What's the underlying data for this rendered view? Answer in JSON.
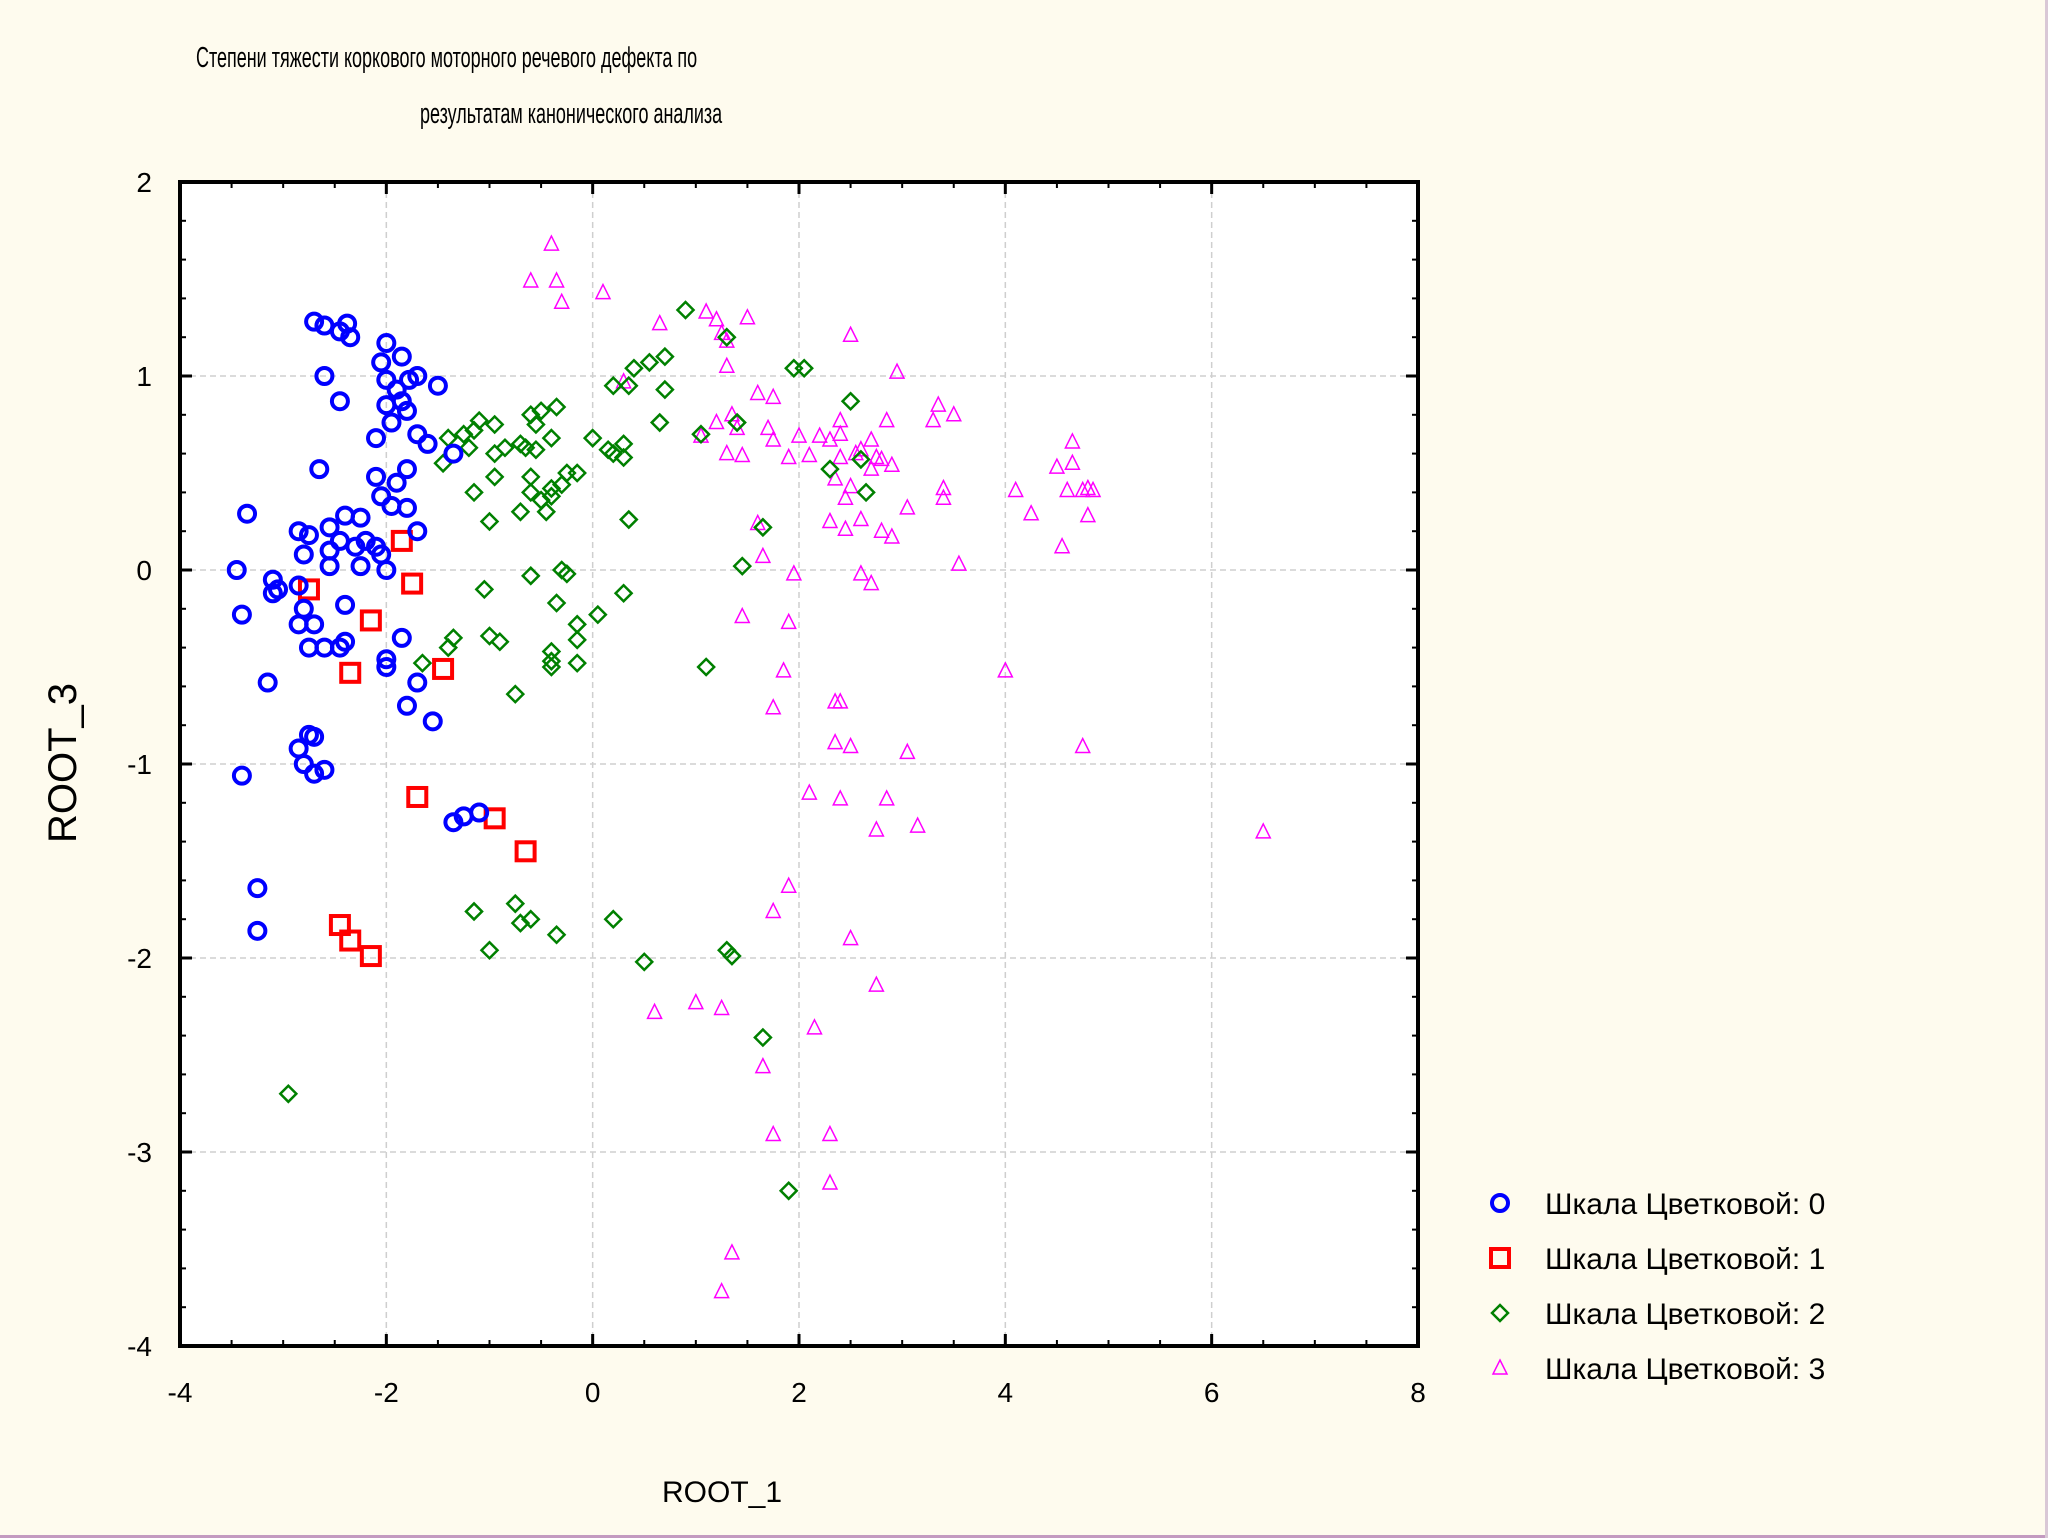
{
  "chart_data": {
    "type": "scatter",
    "title": [
      "Степени тяжести коркового моторного речевого дефекта по",
      "результатам канонического анализа"
    ],
    "xlabel": "ROOT_1",
    "ylabel": "ROOT_3",
    "xlim": [
      -4,
      8
    ],
    "ylim": [
      -4,
      2
    ],
    "xticks": [
      -4,
      -2,
      0,
      2,
      4,
      6,
      8
    ],
    "yticks": [
      2,
      1,
      0,
      -1,
      -2,
      -3,
      -4
    ],
    "grid": true,
    "legend_position": "bottom-right, outside plot",
    "series": [
      {
        "name": "Шкала Цветковой: 0",
        "marker": "circle",
        "color": "#0000ff",
        "points": [
          [
            -2.7,
            1.28
          ],
          [
            -2.6,
            1.26
          ],
          [
            -2.45,
            1.23
          ],
          [
            -2.38,
            1.27
          ],
          [
            -2.35,
            1.2
          ],
          [
            -2.6,
            1.0
          ],
          [
            -2.45,
            0.87
          ],
          [
            -2.0,
            1.17
          ],
          [
            -1.85,
            1.1
          ],
          [
            -2.05,
            1.07
          ],
          [
            -2.0,
            0.98
          ],
          [
            -1.9,
            0.93
          ],
          [
            -1.78,
            0.98
          ],
          [
            -1.7,
            1.0
          ],
          [
            -1.5,
            0.95
          ],
          [
            -2.0,
            0.85
          ],
          [
            -1.85,
            0.87
          ],
          [
            -1.8,
            0.82
          ],
          [
            -1.95,
            0.76
          ],
          [
            -1.7,
            0.7
          ],
          [
            -1.6,
            0.65
          ],
          [
            -1.35,
            0.6
          ],
          [
            -2.1,
            0.68
          ],
          [
            -2.65,
            0.52
          ],
          [
            -2.1,
            0.48
          ],
          [
            -1.8,
            0.52
          ],
          [
            -1.9,
            0.45
          ],
          [
            -2.05,
            0.38
          ],
          [
            -1.95,
            0.33
          ],
          [
            -1.8,
            0.32
          ],
          [
            -3.35,
            0.29
          ],
          [
            -2.85,
            0.2
          ],
          [
            -2.75,
            0.18
          ],
          [
            -2.55,
            0.22
          ],
          [
            -2.4,
            0.28
          ],
          [
            -2.25,
            0.27
          ],
          [
            -2.45,
            0.15
          ],
          [
            -2.3,
            0.12
          ],
          [
            -2.2,
            0.15
          ],
          [
            -2.1,
            0.12
          ],
          [
            -2.55,
            0.1
          ],
          [
            -2.8,
            0.08
          ],
          [
            -2.55,
            0.02
          ],
          [
            -2.25,
            0.02
          ],
          [
            -2.05,
            0.08
          ],
          [
            -2.0,
            0.0
          ],
          [
            -1.7,
            0.2
          ],
          [
            -3.45,
            0.0
          ],
          [
            -3.1,
            -0.05
          ],
          [
            -3.05,
            -0.1
          ],
          [
            -3.1,
            -0.12
          ],
          [
            -2.85,
            -0.08
          ],
          [
            -2.4,
            -0.18
          ],
          [
            -3.4,
            -0.23
          ],
          [
            -2.8,
            -0.2
          ],
          [
            -2.85,
            -0.28
          ],
          [
            -2.7,
            -0.28
          ],
          [
            -2.75,
            -0.4
          ],
          [
            -2.6,
            -0.4
          ],
          [
            -2.45,
            -0.4
          ],
          [
            -2.4,
            -0.37
          ],
          [
            -1.85,
            -0.35
          ],
          [
            -2.0,
            -0.46
          ],
          [
            -2.0,
            -0.5
          ],
          [
            -3.15,
            -0.58
          ],
          [
            -1.7,
            -0.58
          ],
          [
            -1.8,
            -0.7
          ],
          [
            -1.55,
            -0.78
          ],
          [
            -2.75,
            -0.85
          ],
          [
            -2.7,
            -0.86
          ],
          [
            -2.85,
            -0.92
          ],
          [
            -2.8,
            -1.0
          ],
          [
            -2.7,
            -1.05
          ],
          [
            -2.6,
            -1.03
          ],
          [
            -3.4,
            -1.06
          ],
          [
            -1.35,
            -1.3
          ],
          [
            -1.25,
            -1.27
          ],
          [
            -1.1,
            -1.25
          ],
          [
            -3.25,
            -1.64
          ],
          [
            -3.25,
            -1.86
          ]
        ]
      },
      {
        "name": "Шкала Цветковой: 1",
        "marker": "square",
        "color": "#ff0000",
        "points": [
          [
            -1.85,
            0.15
          ],
          [
            -1.75,
            -0.07
          ],
          [
            -2.75,
            -0.1
          ],
          [
            -2.15,
            -0.26
          ],
          [
            -2.35,
            -0.53
          ],
          [
            -1.45,
            -0.51
          ],
          [
            -1.7,
            -1.17
          ],
          [
            -0.95,
            -1.28
          ],
          [
            -0.65,
            -1.45
          ],
          [
            -2.45,
            -1.83
          ],
          [
            -2.35,
            -1.91
          ],
          [
            -2.15,
            -1.99
          ]
        ]
      },
      {
        "name": "Шкала Цветковой: 2",
        "marker": "diamond",
        "color": "#008000",
        "points": [
          [
            0.9,
            1.34
          ],
          [
            1.3,
            1.2
          ],
          [
            0.7,
            1.1
          ],
          [
            0.55,
            1.07
          ],
          [
            0.4,
            1.04
          ],
          [
            1.95,
            1.04
          ],
          [
            2.05,
            1.04
          ],
          [
            0.2,
            0.95
          ],
          [
            0.35,
            0.95
          ],
          [
            0.7,
            0.93
          ],
          [
            2.5,
            0.87
          ],
          [
            -0.35,
            0.84
          ],
          [
            -0.6,
            0.8
          ],
          [
            -0.5,
            0.82
          ],
          [
            -0.55,
            0.75
          ],
          [
            -0.95,
            0.75
          ],
          [
            -1.1,
            0.77
          ],
          [
            -1.15,
            0.72
          ],
          [
            -1.25,
            0.7
          ],
          [
            -1.4,
            0.68
          ],
          [
            -0.4,
            0.68
          ],
          [
            0.0,
            0.68
          ],
          [
            0.3,
            0.65
          ],
          [
            0.15,
            0.62
          ],
          [
            0.2,
            0.6
          ],
          [
            0.65,
            0.76
          ],
          [
            1.05,
            0.7
          ],
          [
            1.4,
            0.76
          ],
          [
            -1.2,
            0.63
          ],
          [
            -0.95,
            0.6
          ],
          [
            -0.85,
            0.63
          ],
          [
            -0.7,
            0.65
          ],
          [
            -0.65,
            0.63
          ],
          [
            -0.55,
            0.62
          ],
          [
            -0.4,
            0.42
          ],
          [
            -0.6,
            0.48
          ],
          [
            -0.25,
            0.5
          ],
          [
            -0.15,
            0.5
          ],
          [
            -0.3,
            0.44
          ],
          [
            0.3,
            0.58
          ],
          [
            2.3,
            0.52
          ],
          [
            2.6,
            0.57
          ],
          [
            2.65,
            0.4
          ],
          [
            -1.45,
            0.55
          ],
          [
            -1.15,
            0.4
          ],
          [
            -0.6,
            0.4
          ],
          [
            -0.4,
            0.38
          ],
          [
            -0.5,
            0.36
          ],
          [
            -0.7,
            0.3
          ],
          [
            -0.45,
            0.3
          ],
          [
            -0.95,
            0.48
          ],
          [
            -1.0,
            0.25
          ],
          [
            0.35,
            0.26
          ],
          [
            1.65,
            0.22
          ],
          [
            1.45,
            0.02
          ],
          [
            -0.3,
            0.0
          ],
          [
            -0.25,
            -0.02
          ],
          [
            -0.6,
            -0.03
          ],
          [
            -1.05,
            -0.1
          ],
          [
            0.3,
            -0.12
          ],
          [
            -0.35,
            -0.17
          ],
          [
            0.05,
            -0.23
          ],
          [
            -0.15,
            -0.28
          ],
          [
            -1.35,
            -0.35
          ],
          [
            -1.0,
            -0.34
          ],
          [
            -0.9,
            -0.37
          ],
          [
            -0.15,
            -0.36
          ],
          [
            -1.4,
            -0.4
          ],
          [
            -0.4,
            -0.42
          ],
          [
            -0.4,
            -0.47
          ],
          [
            -0.15,
            -0.48
          ],
          [
            -0.4,
            -0.5
          ],
          [
            -1.65,
            -0.48
          ],
          [
            1.1,
            -0.5
          ],
          [
            -0.75,
            -0.64
          ],
          [
            -1.15,
            -1.76
          ],
          [
            -0.75,
            -1.72
          ],
          [
            -0.7,
            -1.82
          ],
          [
            -0.6,
            -1.8
          ],
          [
            -0.35,
            -1.88
          ],
          [
            0.2,
            -1.8
          ],
          [
            -1.0,
            -1.96
          ],
          [
            0.5,
            -2.02
          ],
          [
            1.3,
            -1.96
          ],
          [
            1.35,
            -1.99
          ],
          [
            1.65,
            -2.41
          ],
          [
            -2.95,
            -2.7
          ],
          [
            1.9,
            -3.2
          ]
        ]
      },
      {
        "name": "Шкала Цветковой: 3",
        "marker": "triangle",
        "color": "#ff00ff",
        "points": [
          [
            -0.4,
            1.68
          ],
          [
            -0.6,
            1.49
          ],
          [
            -0.35,
            1.49
          ],
          [
            -0.3,
            1.38
          ],
          [
            0.1,
            1.43
          ],
          [
            1.1,
            1.33
          ],
          [
            1.5,
            1.3
          ],
          [
            1.2,
            1.29
          ],
          [
            0.65,
            1.27
          ],
          [
            1.25,
            1.22
          ],
          [
            1.3,
            1.18
          ],
          [
            2.5,
            1.21
          ],
          [
            1.3,
            1.05
          ],
          [
            2.95,
            1.02
          ],
          [
            0.3,
            0.97
          ],
          [
            1.6,
            0.91
          ],
          [
            1.75,
            0.89
          ],
          [
            3.35,
            0.85
          ],
          [
            3.5,
            0.8
          ],
          [
            3.3,
            0.77
          ],
          [
            2.4,
            0.77
          ],
          [
            2.85,
            0.77
          ],
          [
            1.35,
            0.8
          ],
          [
            1.2,
            0.76
          ],
          [
            1.4,
            0.73
          ],
          [
            1.7,
            0.73
          ],
          [
            1.05,
            0.69
          ],
          [
            1.75,
            0.67
          ],
          [
            2.0,
            0.69
          ],
          [
            2.2,
            0.69
          ],
          [
            2.4,
            0.7
          ],
          [
            2.3,
            0.67
          ],
          [
            2.7,
            0.67
          ],
          [
            4.65,
            0.66
          ],
          [
            2.6,
            0.62
          ],
          [
            1.3,
            0.6
          ],
          [
            1.45,
            0.59
          ],
          [
            1.9,
            0.58
          ],
          [
            2.1,
            0.59
          ],
          [
            2.4,
            0.58
          ],
          [
            2.55,
            0.6
          ],
          [
            2.75,
            0.58
          ],
          [
            2.8,
            0.57
          ],
          [
            2.7,
            0.52
          ],
          [
            2.9,
            0.54
          ],
          [
            4.65,
            0.55
          ],
          [
            4.5,
            0.53
          ],
          [
            2.35,
            0.47
          ],
          [
            2.5,
            0.43
          ],
          [
            3.4,
            0.42
          ],
          [
            4.1,
            0.41
          ],
          [
            4.6,
            0.41
          ],
          [
            4.75,
            0.41
          ],
          [
            4.8,
            0.42
          ],
          [
            4.85,
            0.41
          ],
          [
            2.45,
            0.37
          ],
          [
            3.4,
            0.37
          ],
          [
            3.05,
            0.32
          ],
          [
            4.25,
            0.29
          ],
          [
            4.8,
            0.28
          ],
          [
            2.3,
            0.25
          ],
          [
            2.6,
            0.26
          ],
          [
            1.6,
            0.24
          ],
          [
            2.8,
            0.2
          ],
          [
            2.45,
            0.21
          ],
          [
            2.9,
            0.17
          ],
          [
            4.55,
            0.12
          ],
          [
            1.65,
            0.07
          ],
          [
            3.55,
            0.03
          ],
          [
            1.95,
            -0.02
          ],
          [
            2.6,
            -0.02
          ],
          [
            2.7,
            -0.07
          ],
          [
            1.45,
            -0.24
          ],
          [
            1.9,
            -0.27
          ],
          [
            1.85,
            -0.52
          ],
          [
            4.0,
            -0.52
          ],
          [
            2.35,
            -0.68
          ],
          [
            2.4,
            -0.68
          ],
          [
            1.75,
            -0.71
          ],
          [
            2.35,
            -0.89
          ],
          [
            2.5,
            -0.91
          ],
          [
            3.05,
            -0.94
          ],
          [
            4.75,
            -0.91
          ],
          [
            2.1,
            -1.15
          ],
          [
            2.4,
            -1.18
          ],
          [
            2.85,
            -1.18
          ],
          [
            3.15,
            -1.32
          ],
          [
            2.75,
            -1.34
          ],
          [
            6.5,
            -1.35
          ],
          [
            1.9,
            -1.63
          ],
          [
            1.75,
            -1.76
          ],
          [
            2.5,
            -1.9
          ],
          [
            2.75,
            -2.14
          ],
          [
            1.0,
            -2.23
          ],
          [
            0.6,
            -2.28
          ],
          [
            1.25,
            -2.26
          ],
          [
            2.15,
            -2.36
          ],
          [
            1.65,
            -2.56
          ],
          [
            1.75,
            -2.91
          ],
          [
            2.3,
            -2.91
          ],
          [
            2.3,
            -3.16
          ],
          [
            1.35,
            -3.52
          ],
          [
            1.25,
            -3.72
          ]
        ]
      }
    ]
  }
}
